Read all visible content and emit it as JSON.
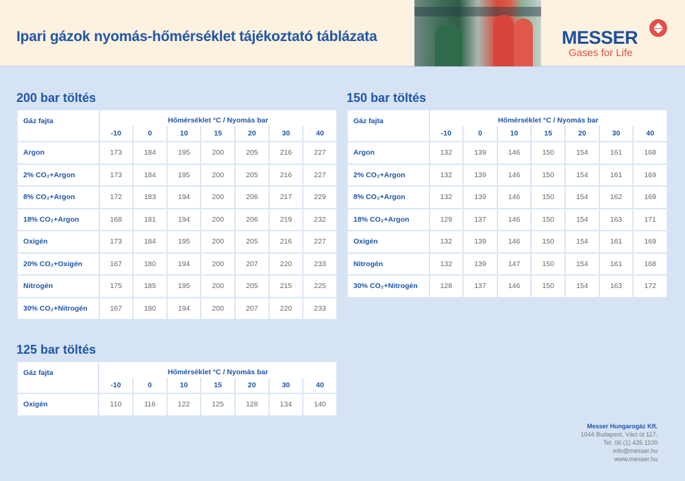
{
  "header": {
    "title": "Ipari gázok nyomás-hőmérséklet tájékoztató táblázata",
    "logo_text": "MESSER",
    "logo_tagline": "Gases for Life",
    "colors": {
      "brand_blue": "#1f56a8",
      "brand_red": "#e3504a"
    }
  },
  "tables": [
    {
      "title": "200 bar töltés",
      "gas_header": "Gáz fajta",
      "temp_header": "Hőmérséklet °C / Nyomás bar",
      "temps": [
        "-10",
        "0",
        "10",
        "15",
        "20",
        "30",
        "40"
      ],
      "rows": [
        {
          "name": "Argon",
          "values": [
            "173",
            "184",
            "195",
            "200",
            "205",
            "216",
            "227"
          ]
        },
        {
          "name": "2% CO₂+Argon",
          "values": [
            "173",
            "184",
            "195",
            "200",
            "205",
            "216",
            "227"
          ]
        },
        {
          "name": "8% CO₂+Argon",
          "values": [
            "172",
            "183",
            "194",
            "200",
            "206",
            "217",
            "229"
          ]
        },
        {
          "name": "18% CO₂+Argon",
          "values": [
            "168",
            "181",
            "194",
            "200",
            "206",
            "219",
            "232"
          ]
        },
        {
          "name": "Oxigén",
          "values": [
            "173",
            "184",
            "195",
            "200",
            "205",
            "216",
            "227"
          ]
        },
        {
          "name": "20% CO₂+Oxigén",
          "values": [
            "167",
            "180",
            "194",
            "200",
            "207",
            "220",
            "233"
          ]
        },
        {
          "name": "Nitrogén",
          "values": [
            "175",
            "185",
            "195",
            "200",
            "205",
            "215",
            "225"
          ]
        },
        {
          "name": "30% CO₂+Nitrogén",
          "values": [
            "167",
            "180",
            "194",
            "200",
            "207",
            "220",
            "233"
          ]
        }
      ]
    },
    {
      "title": "150 bar töltés",
      "gas_header": "Gáz fajta",
      "temp_header": "Hőmérséklet °C / Nyomás bar",
      "temps": [
        "-10",
        "0",
        "10",
        "15",
        "20",
        "30",
        "40"
      ],
      "rows": [
        {
          "name": "Argon",
          "values": [
            "132",
            "139",
            "146",
            "150",
            "154",
            "161",
            "168"
          ]
        },
        {
          "name": "2% CO₂+Argon",
          "values": [
            "132",
            "139",
            "146",
            "150",
            "154",
            "161",
            "169"
          ]
        },
        {
          "name": "8% CO₂+Argon",
          "values": [
            "132",
            "139",
            "146",
            "150",
            "154",
            "162",
            "169"
          ]
        },
        {
          "name": "18% CO₂+Argon",
          "values": [
            "129",
            "137",
            "146",
            "150",
            "154",
            "163",
            "171"
          ]
        },
        {
          "name": "Oxigén",
          "values": [
            "132",
            "139",
            "146",
            "150",
            "154",
            "161",
            "169"
          ]
        },
        {
          "name": "Nitrogén",
          "values": [
            "132",
            "139",
            "147",
            "150",
            "154",
            "161",
            "168"
          ]
        },
        {
          "name": "30% CO₂+Nitrogén",
          "values": [
            "128",
            "137",
            "146",
            "150",
            "154",
            "163",
            "172"
          ]
        }
      ]
    },
    {
      "title": "125 bar töltés",
      "gas_header": "Gáz fajta",
      "temp_header": "Hőmérséklet °C / Nyomás bar",
      "temps": [
        "-10",
        "0",
        "10",
        "15",
        "20",
        "30",
        "40"
      ],
      "rows": [
        {
          "name": "Oxigén",
          "values": [
            "110",
            "116",
            "122",
            "125",
            "128",
            "134",
            "140"
          ]
        }
      ]
    }
  ],
  "footer": {
    "company": "Messer Hungarogáz Kft.",
    "address": "1044 Budapest, Váci út 117.",
    "phone": "Tel. 06 (1) 435 1100",
    "email": "info@messer.hu",
    "web": "www.messer.hu"
  }
}
